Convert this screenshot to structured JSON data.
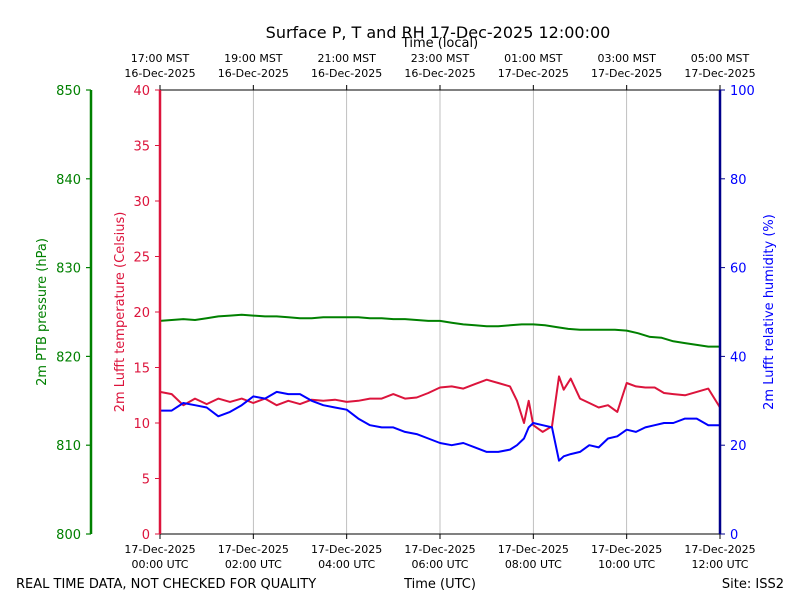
{
  "chart_data": {
    "type": "line",
    "title": "Surface P, T and RH 17-Dec-2025 12:00:00",
    "top_axis_label": "Time (local)",
    "xlabel": "Time (UTC)",
    "footer_left": "REAL TIME DATA, NOT CHECKED FOR QUALITY",
    "footer_right": "Site: ISS2",
    "xlim_hours": [
      0,
      12
    ],
    "bottom_ticks": [
      {
        "h": 0,
        "line1": "17-Dec-2025",
        "line2": "00:00 UTC"
      },
      {
        "h": 2,
        "line1": "17-Dec-2025",
        "line2": "02:00 UTC"
      },
      {
        "h": 4,
        "line1": "17-Dec-2025",
        "line2": "04:00 UTC"
      },
      {
        "h": 6,
        "line1": "17-Dec-2025",
        "line2": "06:00 UTC"
      },
      {
        "h": 8,
        "line1": "17-Dec-2025",
        "line2": "08:00 UTC"
      },
      {
        "h": 10,
        "line1": "17-Dec-2025",
        "line2": "10:00 UTC"
      },
      {
        "h": 12,
        "line1": "17-Dec-2025",
        "line2": "12:00 UTC"
      }
    ],
    "top_ticks": [
      {
        "h": 0,
        "line1": "17:00 MST",
        "line2": "16-Dec-2025"
      },
      {
        "h": 2,
        "line1": "19:00 MST",
        "line2": "16-Dec-2025"
      },
      {
        "h": 4,
        "line1": "21:00 MST",
        "line2": "16-Dec-2025"
      },
      {
        "h": 6,
        "line1": "23:00 MST",
        "line2": "16-Dec-2025"
      },
      {
        "h": 8,
        "line1": "01:00 MST",
        "line2": "17-Dec-2025"
      },
      {
        "h": 10,
        "line1": "03:00 MST",
        "line2": "17-Dec-2025"
      },
      {
        "h": 12,
        "line1": "05:00 MST",
        "line2": "17-Dec-2025"
      }
    ],
    "axes": {
      "pressure": {
        "label": "2m PTB pressure (hPa)",
        "ylim": [
          800,
          850
        ],
        "ticks": [
          800,
          810,
          820,
          830,
          840,
          850
        ],
        "color": "#008000"
      },
      "temperature": {
        "label": "2m Lufft temperature (Celsius)",
        "ylim": [
          0,
          40
        ],
        "ticks": [
          0,
          5,
          10,
          15,
          20,
          25,
          30,
          35,
          40
        ],
        "color": "#dc143c"
      },
      "humidity": {
        "label": "2m Lufft relative humidity (%)",
        "ylim": [
          0,
          100
        ],
        "ticks": [
          0,
          20,
          40,
          60,
          80,
          100
        ],
        "color": "#0000ff"
      }
    },
    "series": [
      {
        "name": "pressure",
        "axis": "pressure",
        "color": "#008000",
        "x": [
          0,
          0.25,
          0.5,
          0.75,
          1,
          1.25,
          1.5,
          1.75,
          2,
          2.25,
          2.5,
          2.75,
          3,
          3.25,
          3.5,
          3.75,
          4,
          4.25,
          4.5,
          4.75,
          5,
          5.25,
          5.5,
          5.75,
          6,
          6.25,
          6.5,
          6.75,
          7,
          7.25,
          7.5,
          7.75,
          8,
          8.25,
          8.5,
          8.75,
          9,
          9.25,
          9.5,
          9.75,
          10,
          10.25,
          10.5,
          10.75,
          11,
          11.25,
          11.5,
          11.75,
          12
        ],
        "values": [
          824.0,
          824.1,
          824.2,
          824.1,
          824.3,
          824.5,
          824.6,
          824.7,
          824.6,
          824.5,
          824.5,
          824.4,
          824.3,
          824.3,
          824.4,
          824.4,
          824.4,
          824.4,
          824.3,
          824.3,
          824.2,
          824.2,
          824.1,
          824.0,
          824.0,
          823.8,
          823.6,
          823.5,
          823.4,
          823.4,
          823.5,
          823.6,
          823.6,
          823.5,
          823.3,
          823.1,
          823.0,
          823.0,
          823.0,
          823.0,
          822.9,
          822.6,
          822.2,
          822.1,
          821.7,
          821.5,
          821.3,
          821.1,
          821.1
        ]
      },
      {
        "name": "temperature",
        "axis": "temperature",
        "color": "#dc143c",
        "x": [
          0,
          0.25,
          0.5,
          0.75,
          1,
          1.25,
          1.5,
          1.75,
          2,
          2.25,
          2.5,
          2.75,
          3,
          3.25,
          3.5,
          3.75,
          4,
          4.25,
          4.5,
          4.75,
          5,
          5.25,
          5.5,
          5.75,
          6,
          6.25,
          6.5,
          6.75,
          7,
          7.25,
          7.5,
          7.65,
          7.8,
          7.9,
          8,
          8.2,
          8.4,
          8.55,
          8.65,
          8.8,
          9,
          9.2,
          9.4,
          9.6,
          9.8,
          10,
          10.2,
          10.4,
          10.6,
          10.8,
          11,
          11.25,
          11.5,
          11.75,
          12
        ],
        "values": [
          12.8,
          12.6,
          11.6,
          12.2,
          11.7,
          12.2,
          11.9,
          12.2,
          11.8,
          12.2,
          11.6,
          12.0,
          11.7,
          12.1,
          12.0,
          12.1,
          11.9,
          12.0,
          12.2,
          12.2,
          12.6,
          12.2,
          12.3,
          12.7,
          13.2,
          13.3,
          13.1,
          13.5,
          13.9,
          13.6,
          13.3,
          12.0,
          10.0,
          12.0,
          9.8,
          9.2,
          9.7,
          14.2,
          13.0,
          14.0,
          12.2,
          11.8,
          11.4,
          11.6,
          11.0,
          13.6,
          13.3,
          13.2,
          13.2,
          12.7,
          12.6,
          12.5,
          12.8,
          13.1,
          11.4
        ]
      },
      {
        "name": "humidity",
        "axis": "humidity",
        "color": "#0000ff",
        "x": [
          0,
          0.25,
          0.5,
          0.75,
          1,
          1.25,
          1.5,
          1.75,
          2,
          2.25,
          2.5,
          2.75,
          3,
          3.25,
          3.5,
          3.75,
          4,
          4.25,
          4.5,
          4.75,
          5,
          5.25,
          5.5,
          5.75,
          6,
          6.25,
          6.5,
          6.75,
          7,
          7.25,
          7.5,
          7.65,
          7.8,
          7.9,
          8,
          8.2,
          8.4,
          8.55,
          8.65,
          8.8,
          9,
          9.2,
          9.4,
          9.6,
          9.8,
          10,
          10.2,
          10.4,
          10.6,
          10.8,
          11,
          11.25,
          11.5,
          11.75,
          12
        ],
        "values": [
          27.8,
          27.8,
          29.5,
          29.0,
          28.5,
          26.5,
          27.5,
          29.0,
          31.0,
          30.5,
          32.0,
          31.5,
          31.5,
          30.0,
          29.0,
          28.5,
          28.0,
          26.0,
          24.5,
          24.0,
          24.0,
          23.0,
          22.5,
          21.5,
          20.5,
          20.0,
          20.5,
          19.5,
          18.5,
          18.5,
          19.0,
          20.0,
          21.5,
          24.0,
          25.0,
          24.5,
          24.0,
          16.5,
          17.5,
          18.0,
          18.5,
          20.0,
          19.5,
          21.5,
          22.0,
          23.5,
          23.0,
          24.0,
          24.5,
          25.0,
          25.0,
          26.0,
          26.0,
          24.5,
          24.5
        ]
      }
    ]
  }
}
